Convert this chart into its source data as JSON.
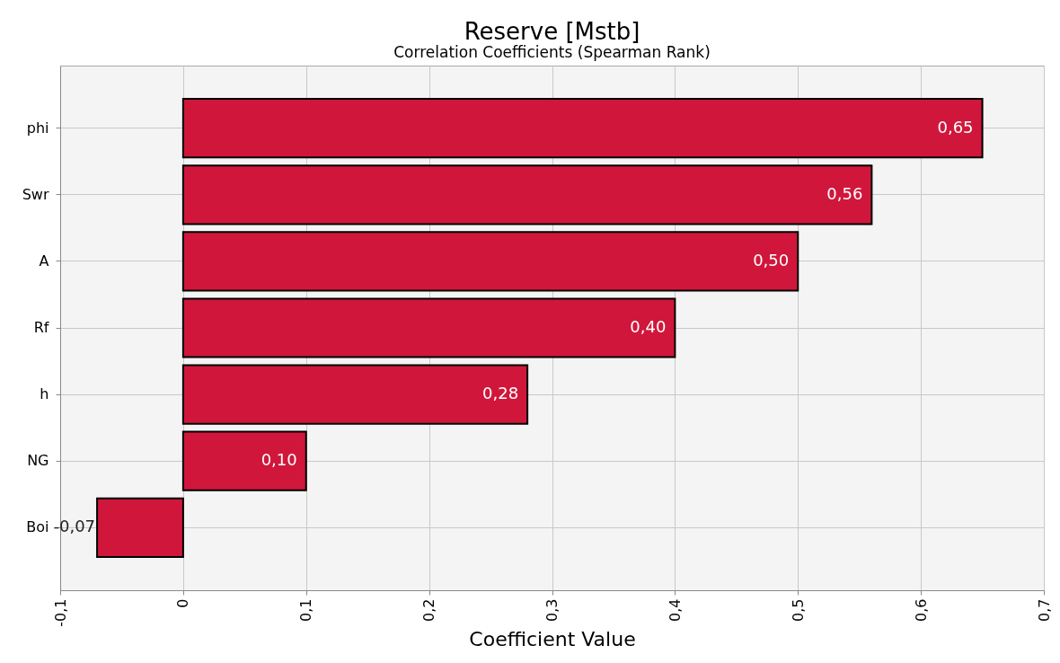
{
  "chart_data": {
    "type": "bar",
    "orientation": "horizontal",
    "title": "Reserve [Mstb]",
    "subtitle": "Correlation Coefficients (Spearman Rank)",
    "xlabel": "Coefficient Value",
    "categories": [
      "phi",
      "Swr",
      "A",
      "Rf",
      "h",
      "NG",
      "Boi"
    ],
    "values": [
      0.65,
      0.56,
      0.5,
      0.4,
      0.28,
      0.1,
      -0.07
    ],
    "value_labels": [
      "0,65",
      "0,56",
      "0,50",
      "0,40",
      "0,28",
      "0,10",
      "-0,07"
    ],
    "color": "#d0173b",
    "xlim": [
      -0.1,
      0.7
    ],
    "xticks": [
      {
        "value": -0.1,
        "label": "-0,1"
      },
      0,
      {
        "value": 0.1,
        "label": "0,1"
      },
      {
        "value": 0.2,
        "label": "0,2"
      },
      {
        "value": 0.3,
        "label": "0,3"
      },
      {
        "value": 0.4,
        "label": "0,4"
      },
      {
        "value": 0.5,
        "label": "0,5"
      },
      {
        "value": 0.6,
        "label": "0,6"
      },
      {
        "value": 0.7,
        "label": "0,7"
      }
    ],
    "grid": true
  }
}
